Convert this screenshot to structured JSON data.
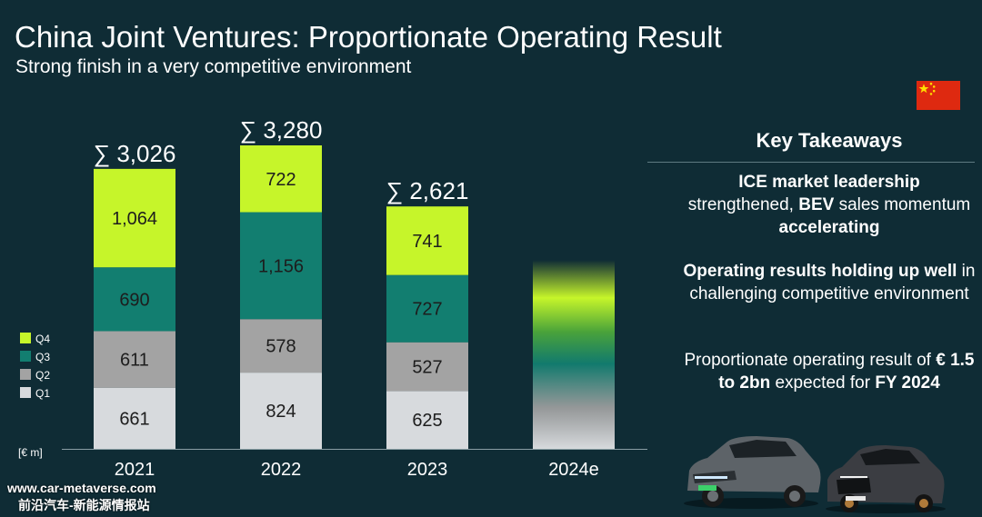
{
  "header": {
    "title": "China Joint Ventures: Proportionate Operating Result",
    "subtitle": "Strong finish in a very competitive environment"
  },
  "chart_data": {
    "type": "bar",
    "stacked": true,
    "categories": [
      "2021",
      "2022",
      "2023",
      "2024e"
    ],
    "unit_label": "[€ m]",
    "series": [
      {
        "name": "Q1",
        "color": "#d7dadd",
        "values": [
          661,
          824,
          625,
          null
        ]
      },
      {
        "name": "Q2",
        "color": "#a3a3a3",
        "values": [
          611,
          578,
          527,
          null
        ]
      },
      {
        "name": "Q3",
        "color": "#127e70",
        "values": [
          690,
          1156,
          727,
          null
        ]
      },
      {
        "name": "Q4",
        "color": "#c6f52a",
        "values": [
          1064,
          722,
          741,
          null
        ]
      }
    ],
    "totals": [
      "∑ 3,026",
      "∑ 3,280",
      "∑ 2,621"
    ],
    "data_labels": [
      [
        "661",
        "611",
        "690",
        "1,064"
      ],
      [
        "824",
        "578",
        "1,156",
        "722"
      ],
      [
        "625",
        "527",
        "727",
        "741"
      ]
    ],
    "estimate_range": [
      1500,
      2000
    ],
    "legend": [
      "Q4",
      "Q3",
      "Q2",
      "Q1"
    ],
    "legend_position": "left",
    "ylim": [
      0,
      3500
    ],
    "grid": false
  },
  "takeaways": {
    "title": "Key Takeaways",
    "item1": {
      "p1": "ICE market leadership",
      "p2": " strengthened, ",
      "p3": "BEV",
      "p4": " sales momentum ",
      "p5": "accelerating"
    },
    "item2": {
      "p1": "Operating results holding up well",
      "p2": " in challenging competitive environment"
    },
    "item3": {
      "p1": "Proportionate operating result of ",
      "p2": "€ 1.5 to 2bn",
      "p3": " expected for ",
      "p4": "FY 2024"
    }
  },
  "watermark": {
    "line1": "www.car-metaverse.com",
    "line2": "前沿汽车-新能源情报站"
  },
  "colors": {
    "background": "#0f2c35",
    "q1": "#d7dadd",
    "q2": "#a3a3a3",
    "q3": "#127e70",
    "q4": "#c6f52a",
    "flag_red": "#de2910",
    "flag_yellow": "#ffde00"
  },
  "icons": [
    "china-flag-icon",
    "car-photo-vw",
    "car-photo-audi"
  ]
}
